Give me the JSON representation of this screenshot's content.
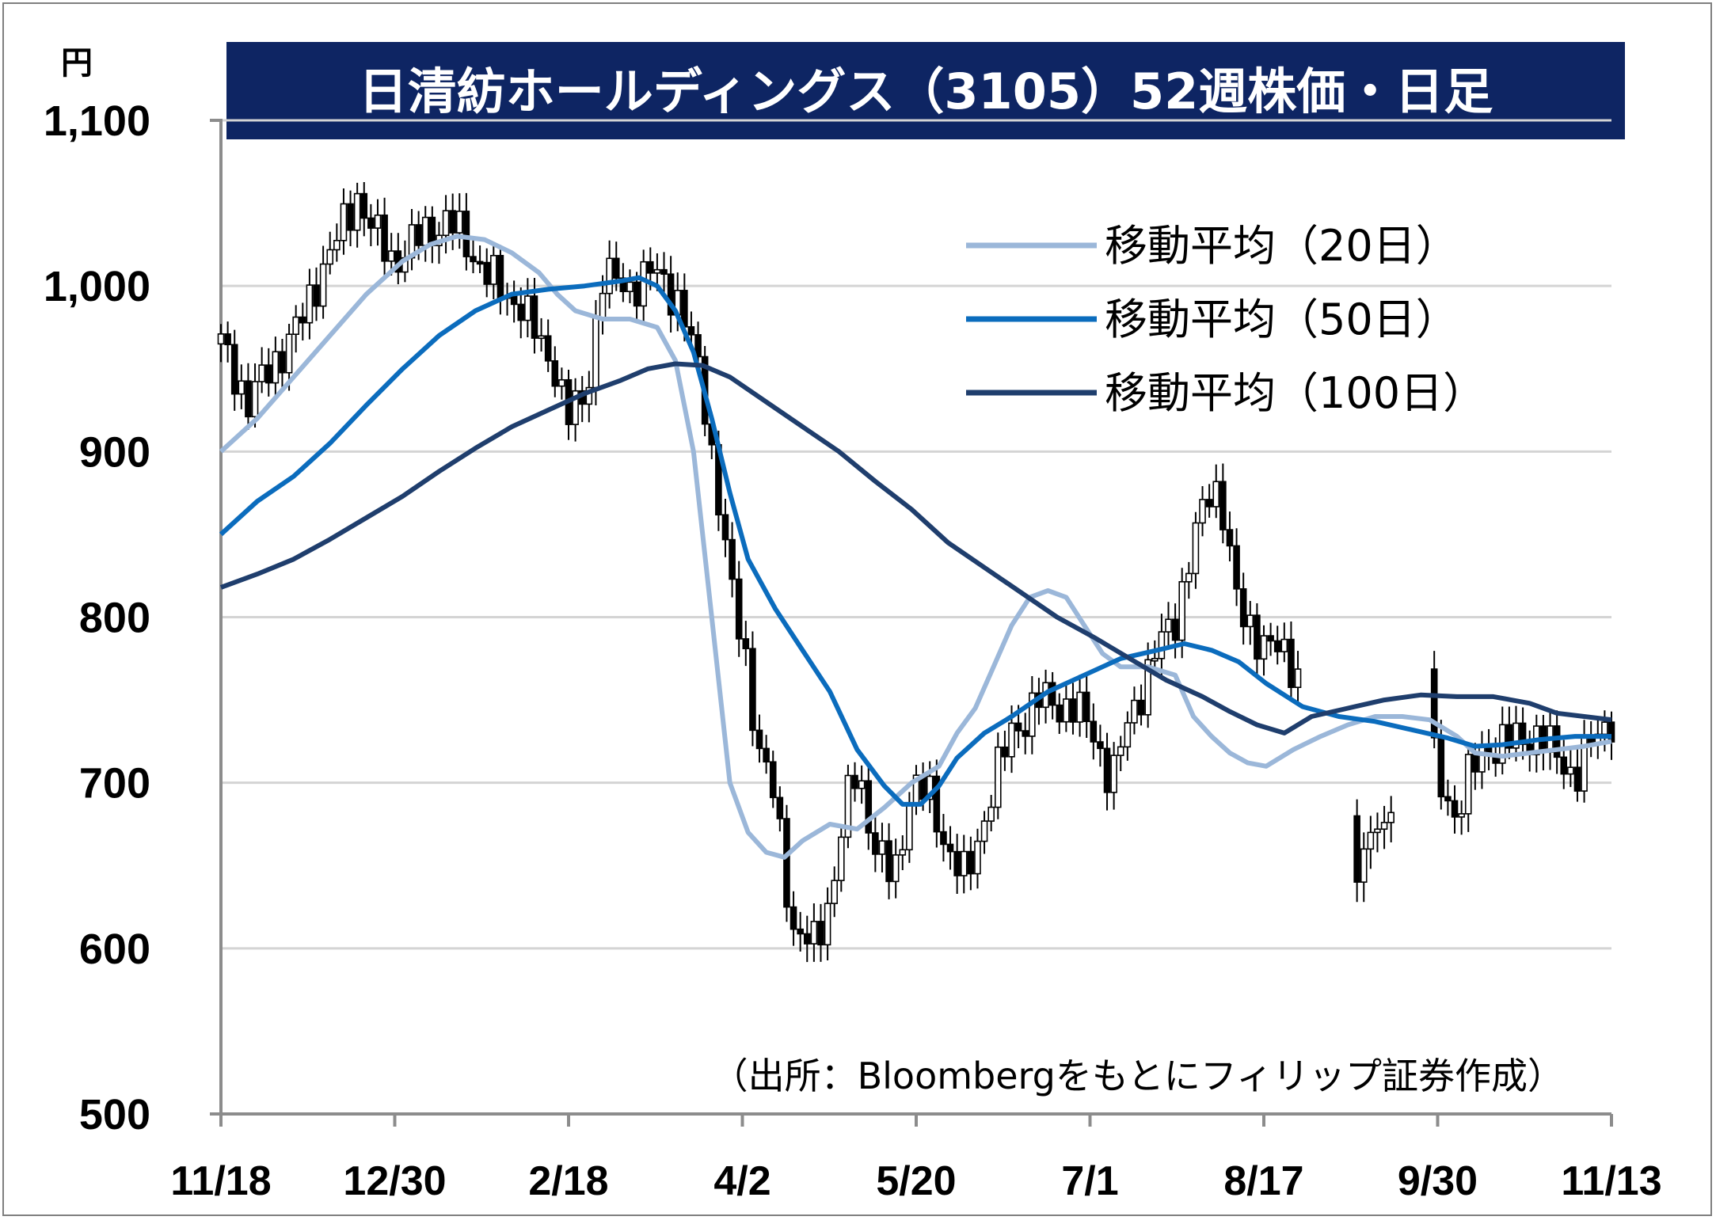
{
  "chart_data": {
    "type": "candlestick",
    "title": "日清紡ホールディングス（3105）52週株価・日足",
    "unit": "円",
    "source": "（出所：Bloombergをもとにフィリップ証券作成）",
    "ylim": [
      500,
      1100
    ],
    "yticks": [
      500,
      600,
      700,
      800,
      900,
      "1,000",
      "1,100"
    ],
    "xticks": [
      "11/18",
      "12/30",
      "2/18",
      "4/2",
      "5/20",
      "7/1",
      "8/17",
      "9/30",
      "11/13"
    ],
    "grid": true,
    "legend_position": "top-right",
    "series": [
      {
        "name": "移動平均（20日）",
        "color": "#9bb7d9",
        "points": [
          [
            0,
            900
          ],
          [
            8,
            920
          ],
          [
            16,
            945
          ],
          [
            24,
            970
          ],
          [
            32,
            995
          ],
          [
            40,
            1015
          ],
          [
            46,
            1025
          ],
          [
            52,
            1030
          ],
          [
            58,
            1028
          ],
          [
            64,
            1020
          ],
          [
            70,
            1008
          ],
          [
            74,
            995
          ],
          [
            78,
            985
          ],
          [
            84,
            980
          ],
          [
            90,
            980
          ],
          [
            96,
            975
          ],
          [
            100,
            955
          ],
          [
            104,
            900
          ],
          [
            108,
            800
          ],
          [
            112,
            700
          ],
          [
            116,
            670
          ],
          [
            120,
            658
          ],
          [
            124,
            655
          ],
          [
            128,
            665
          ],
          [
            134,
            675
          ],
          [
            140,
            672
          ],
          [
            146,
            685
          ],
          [
            152,
            700
          ],
          [
            158,
            710
          ],
          [
            162,
            730
          ],
          [
            166,
            745
          ],
          [
            170,
            770
          ],
          [
            174,
            795
          ],
          [
            178,
            812
          ],
          [
            182,
            816
          ],
          [
            186,
            812
          ],
          [
            190,
            795
          ],
          [
            194,
            778
          ],
          [
            198,
            770
          ],
          [
            204,
            770
          ],
          [
            210,
            765
          ],
          [
            214,
            740
          ],
          [
            218,
            728
          ],
          [
            222,
            718
          ],
          [
            226,
            712
          ],
          [
            230,
            710
          ],
          [
            236,
            720
          ],
          [
            242,
            728
          ],
          [
            248,
            735
          ],
          [
            254,
            740
          ],
          [
            260,
            740
          ],
          [
            266,
            738
          ],
          [
            272,
            728
          ],
          [
            276,
            718
          ],
          [
            282,
            716
          ],
          [
            288,
            718
          ],
          [
            294,
            720
          ],
          [
            300,
            722
          ],
          [
            306,
            725
          ]
        ]
      },
      {
        "name": "移動平均（50日）",
        "color": "#0b6cbd",
        "points": [
          [
            0,
            850
          ],
          [
            8,
            870
          ],
          [
            16,
            885
          ],
          [
            24,
            905
          ],
          [
            32,
            928
          ],
          [
            40,
            950
          ],
          [
            48,
            970
          ],
          [
            56,
            985
          ],
          [
            64,
            995
          ],
          [
            72,
            998
          ],
          [
            80,
            1000
          ],
          [
            88,
            1003
          ],
          [
            92,
            1005
          ],
          [
            96,
            1000
          ],
          [
            100,
            985
          ],
          [
            104,
            960
          ],
          [
            108,
            920
          ],
          [
            112,
            875
          ],
          [
            116,
            835
          ],
          [
            122,
            805
          ],
          [
            128,
            780
          ],
          [
            134,
            755
          ],
          [
            140,
            720
          ],
          [
            146,
            698
          ],
          [
            150,
            687
          ],
          [
            154,
            687
          ],
          [
            158,
            698
          ],
          [
            162,
            715
          ],
          [
            168,
            730
          ],
          [
            174,
            740
          ],
          [
            182,
            755
          ],
          [
            190,
            765
          ],
          [
            198,
            775
          ],
          [
            206,
            780
          ],
          [
            212,
            784
          ],
          [
            218,
            780
          ],
          [
            224,
            773
          ],
          [
            230,
            760
          ],
          [
            238,
            746
          ],
          [
            246,
            740
          ],
          [
            254,
            737
          ],
          [
            262,
            732
          ],
          [
            270,
            727
          ],
          [
            276,
            722
          ],
          [
            282,
            723
          ],
          [
            290,
            726
          ],
          [
            298,
            728
          ],
          [
            306,
            728
          ]
        ]
      },
      {
        "name": "移動平均（100日）",
        "color": "#1f3e6d",
        "points": [
          [
            0,
            818
          ],
          [
            8,
            826
          ],
          [
            16,
            835
          ],
          [
            24,
            847
          ],
          [
            32,
            860
          ],
          [
            40,
            873
          ],
          [
            48,
            888
          ],
          [
            56,
            902
          ],
          [
            64,
            915
          ],
          [
            72,
            925
          ],
          [
            80,
            935
          ],
          [
            88,
            943
          ],
          [
            94,
            950
          ],
          [
            100,
            953
          ],
          [
            106,
            952
          ],
          [
            112,
            945
          ],
          [
            120,
            930
          ],
          [
            128,
            915
          ],
          [
            136,
            900
          ],
          [
            144,
            882
          ],
          [
            152,
            865
          ],
          [
            160,
            845
          ],
          [
            168,
            830
          ],
          [
            176,
            815
          ],
          [
            184,
            800
          ],
          [
            192,
            788
          ],
          [
            200,
            775
          ],
          [
            208,
            762
          ],
          [
            216,
            752
          ],
          [
            222,
            743
          ],
          [
            228,
            735
          ],
          [
            234,
            730
          ],
          [
            240,
            740
          ],
          [
            248,
            745
          ],
          [
            256,
            750
          ],
          [
            264,
            753
          ],
          [
            272,
            752
          ],
          [
            280,
            752
          ],
          [
            288,
            748
          ],
          [
            294,
            742
          ],
          [
            300,
            740
          ],
          [
            306,
            738
          ]
        ]
      }
    ]
  }
}
